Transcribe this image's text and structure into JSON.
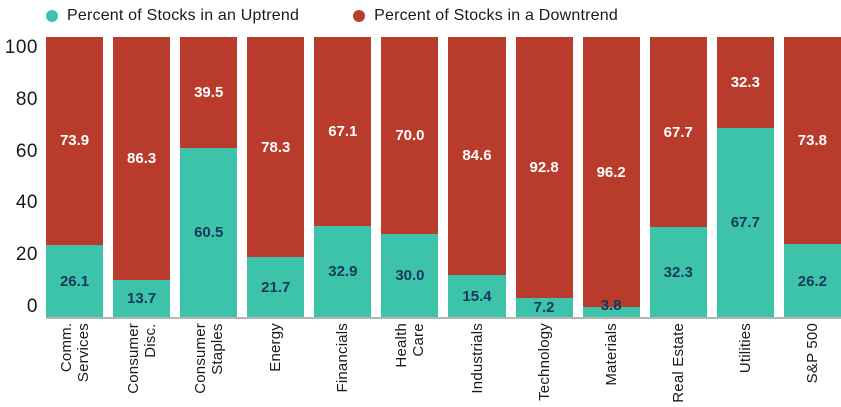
{
  "chart_data": {
    "type": "bar",
    "stacked": true,
    "orientation": "vertical",
    "categories": [
      "Comm.\nServices",
      "Consumer\nDisc.",
      "Consumer\nStaples",
      "Energy",
      "Financials",
      "Health\nCare",
      "Industrials",
      "Technology",
      "Materials",
      "Real Estate",
      "Utilities",
      "S&P 500"
    ],
    "series": [
      {
        "name": "Percent of Stocks in an Uptrend",
        "color": "#3EC3AB",
        "values": [
          26.1,
          13.7,
          60.5,
          21.7,
          32.9,
          30.0,
          15.4,
          7.2,
          3.8,
          32.3,
          67.7,
          26.2
        ]
      },
      {
        "name": "Percent of Stocks in a Downtrend",
        "color": "#B83B2B",
        "values": [
          73.9,
          86.3,
          39.5,
          78.3,
          67.1,
          70.0,
          84.6,
          92.8,
          96.2,
          67.7,
          32.3,
          73.8
        ]
      }
    ],
    "yticks": [
      0,
      20,
      40,
      60,
      80,
      100
    ],
    "ylim": [
      0,
      100
    ],
    "xlabel": "",
    "ylabel": "",
    "title": "",
    "grid": false,
    "legend_position": "top-left",
    "value_labels": "one-decimal, shown inside each segment"
  },
  "colors": {
    "up": "#3EC3AB",
    "down": "#B83B2B",
    "value_text_on_up": "#17375E",
    "value_text_on_down": "#FFFFFF",
    "axis_line": "#B5B5B5",
    "text": "#1A1A1A"
  }
}
